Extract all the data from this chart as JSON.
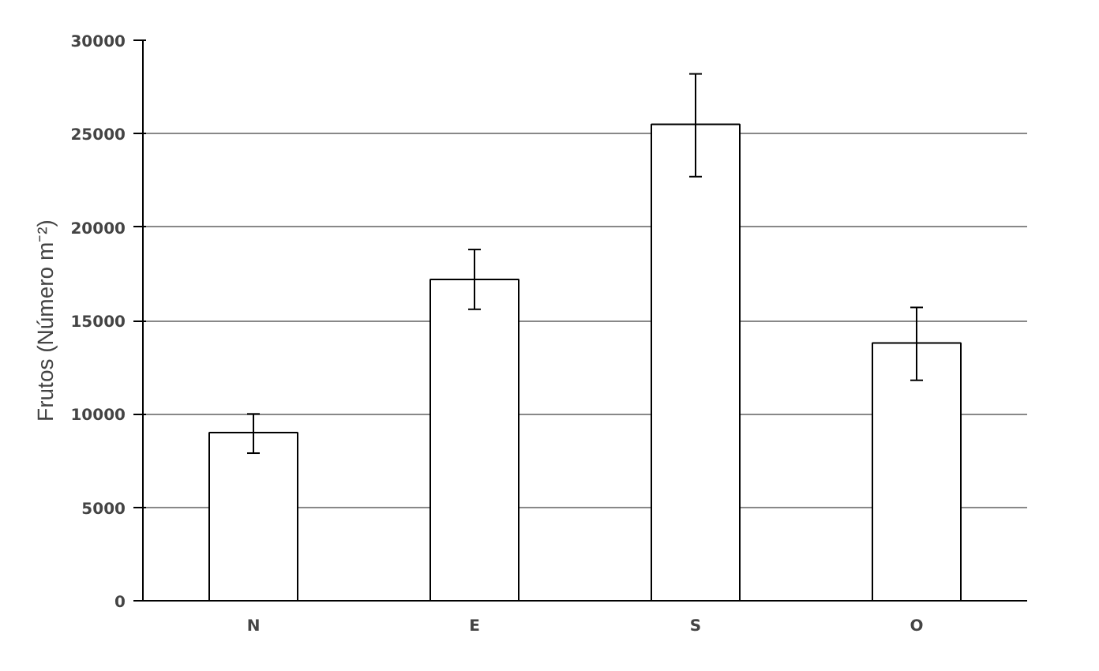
{
  "chart_data": {
    "type": "bar",
    "ylabel": "Frutos (Número m⁻²)",
    "categories": [
      "N",
      "E",
      "S",
      "O"
    ],
    "values": [
      9000,
      17200,
      25500,
      13800
    ],
    "errors": [
      [
        7900,
        10000
      ],
      [
        15600,
        18800
      ],
      [
        22700,
        28200
      ],
      [
        11800,
        15700
      ]
    ],
    "color": "#ffffff",
    "ylim": [
      0,
      30000
    ],
    "yticks": [
      0,
      5000,
      10000,
      15000,
      20000,
      25000,
      30000
    ],
    "grid": "y"
  }
}
